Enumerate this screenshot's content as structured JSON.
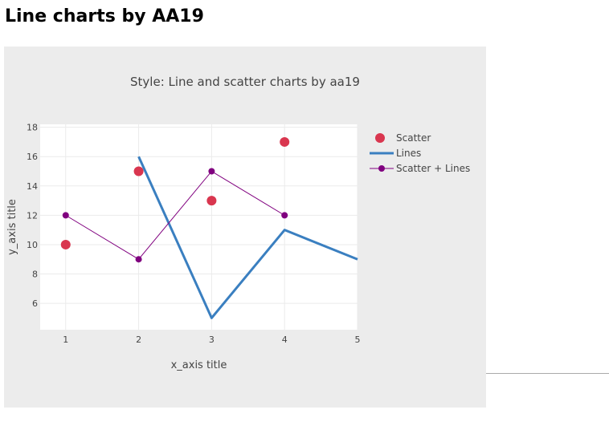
{
  "page": {
    "title": "Line charts by AA19"
  },
  "chart_data": {
    "type": "line",
    "title": "Style: Line and scatter charts by aa19",
    "xlabel": "x_axis title",
    "ylabel": "y_axis title",
    "xlim": [
      0.65,
      5
    ],
    "ylim": [
      4.2,
      18.2
    ],
    "x_ticks": [
      1,
      2,
      3,
      4,
      5
    ],
    "y_ticks": [
      6,
      8,
      10,
      12,
      14,
      16,
      18
    ],
    "grid": true,
    "legend_position": "top-right",
    "series": [
      {
        "name": "Scatter",
        "mode": "markers",
        "color": "#d9364f",
        "x": [
          1,
          2,
          3,
          4
        ],
        "y": [
          10,
          15,
          13,
          17
        ]
      },
      {
        "name": "Lines",
        "mode": "lines",
        "color": "#3a7fc0",
        "x": [
          2,
          3,
          4,
          5
        ],
        "y": [
          16,
          5,
          11,
          9
        ]
      },
      {
        "name": "Scatter + Lines",
        "mode": "lines+markers",
        "color": "#80007f",
        "x": [
          1,
          2,
          3,
          4
        ],
        "y": [
          12,
          9,
          15,
          12
        ]
      }
    ]
  }
}
